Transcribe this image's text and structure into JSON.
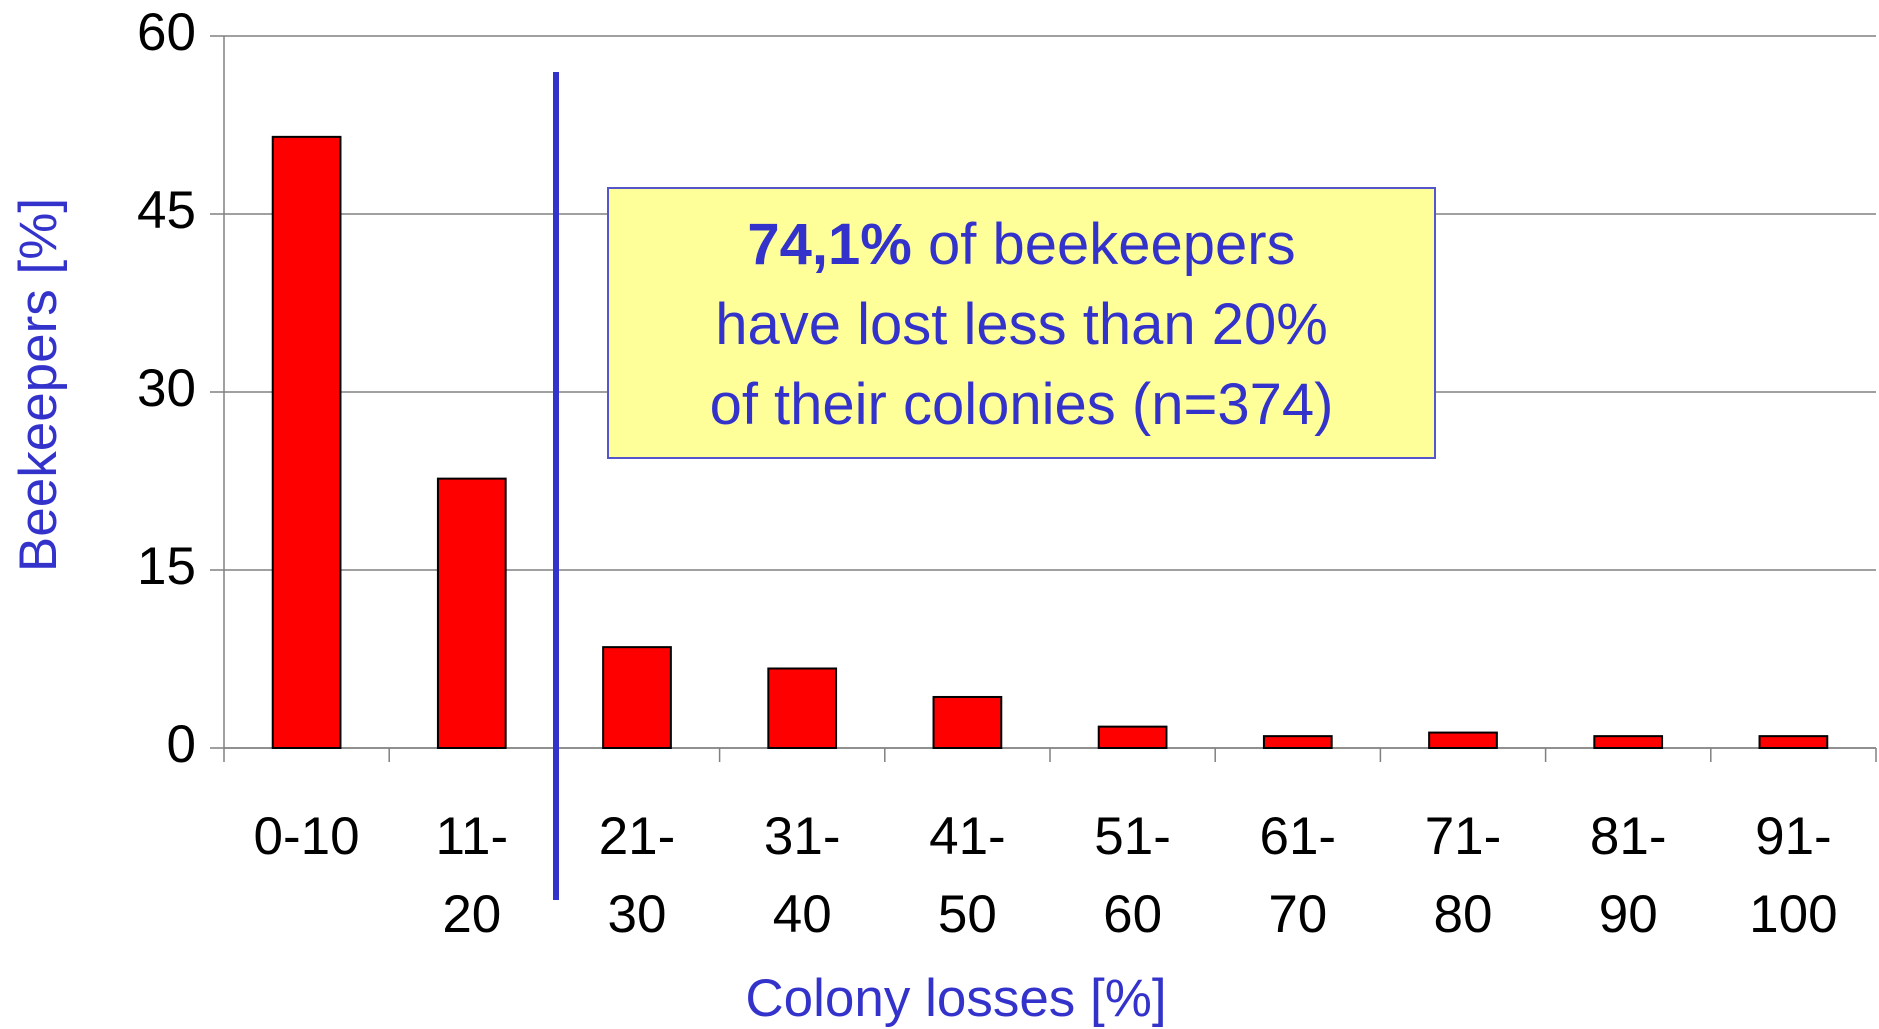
{
  "chart_data": {
    "type": "bar",
    "xlabel": "Colony losses [%]",
    "ylabel": "Beekeepers [%]",
    "categories": [
      "0-10",
      "11-20",
      "21-30",
      "31-40",
      "41-50",
      "51-60",
      "61-70",
      "71-80",
      "81-90",
      "91-100"
    ],
    "values": [
      51.5,
      22.7,
      8.5,
      6.7,
      4.3,
      1.8,
      1.0,
      1.3,
      1.0,
      1.0
    ],
    "color": "#ff0000",
    "ylim": [
      0,
      60
    ],
    "yticks": [
      0,
      15,
      30,
      45,
      60
    ],
    "grid": true,
    "annotation": {
      "bold": "74,1%",
      "line1": "of beekeepers",
      "line2": "have lost less than 20%",
      "line3": "of their colonies (n=374)"
    }
  }
}
